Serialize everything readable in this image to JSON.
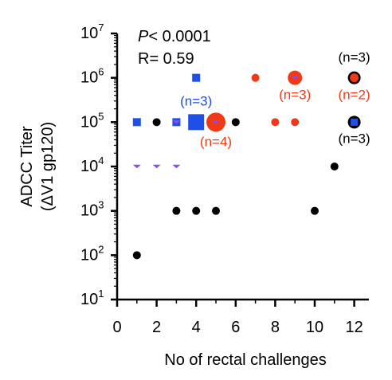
{
  "chart_data": {
    "type": "scatter",
    "title": "",
    "xlabel": "No of rectal challenges",
    "ylabel_line1": "ADCC Titer",
    "ylabel_line2": "(ΔV1 gp120)",
    "xlim": [
      0,
      13
    ],
    "ylim_log10": [
      1,
      7
    ],
    "y_scale": "log10",
    "xticks": [
      0,
      2,
      4,
      6,
      8,
      10,
      12
    ],
    "yticks": [
      {
        "base": "10",
        "exp": "1",
        "value": 10
      },
      {
        "base": "10",
        "exp": "2",
        "value": 100
      },
      {
        "base": "10",
        "exp": "3",
        "value": 1000
      },
      {
        "base": "10",
        "exp": "4",
        "value": 10000
      },
      {
        "base": "10",
        "exp": "5",
        "value": 100000
      },
      {
        "base": "10",
        "exp": "6",
        "value": 1000000
      },
      {
        "base": "10",
        "exp": "7",
        "value": 10000000
      }
    ],
    "stats": {
      "p_label": "P",
      "p_text": "< 0.0001",
      "r_text": "R= 0.59"
    },
    "colors": {
      "black": "#000000",
      "blue": "#1f4fe6",
      "red": "#f03a17",
      "purple": "#8a4dea",
      "axis": "#000000"
    },
    "series": [
      {
        "marker": "circle",
        "color": "#000000",
        "points": [
          {
            "x": 1,
            "y": 100
          },
          {
            "x": 2,
            "y": 100000
          },
          {
            "x": 3,
            "y": 1000
          },
          {
            "x": 4,
            "y": 1000
          },
          {
            "x": 5,
            "y": 1000
          },
          {
            "x": 6,
            "y": 100000
          },
          {
            "x": 10,
            "y": 1000
          },
          {
            "x": 11,
            "y": 10000
          }
        ]
      },
      {
        "marker": "square",
        "color": "#1f4fe6",
        "points": [
          {
            "x": 1,
            "y": 100000
          },
          {
            "x": 3,
            "y": 100000
          },
          {
            "x": 4,
            "y": 1000000
          }
        ]
      },
      {
        "marker": "circle",
        "color": "#f03a17",
        "points": [
          {
            "x": 7,
            "y": 1000000
          },
          {
            "x": 8,
            "y": 100000
          },
          {
            "x": 9,
            "y": 100000
          }
        ]
      },
      {
        "marker": "triangle-down",
        "color": "#8a4dea",
        "points": [
          {
            "x": 1,
            "y": 10000
          },
          {
            "x": 2,
            "y": 10000
          },
          {
            "x": 3,
            "y": 10000
          },
          {
            "x": 3,
            "y": 100000
          }
        ]
      },
      {
        "marker": "square-large",
        "color": "#1f4fe6",
        "points": [
          {
            "x": 4,
            "y": 100000,
            "n": "(n=3)"
          }
        ]
      },
      {
        "marker": "circle-large",
        "color": "#f03a17",
        "points": [
          {
            "x": 5,
            "y": 100000,
            "n": "(n=4)",
            "inner": "triangle-down"
          },
          {
            "x": 9,
            "y": 1000000,
            "n": "(n=3)",
            "inner": "triangle-down"
          }
        ]
      },
      {
        "marker": "circle-outlined",
        "color": "#f03a17",
        "points": [
          {
            "x": 12,
            "y": 1000000,
            "n_top": "(n=3)",
            "n_bottom": "(n=2)"
          }
        ]
      },
      {
        "marker": "circle-outlined",
        "color": "#1f4fe6",
        "points": [
          {
            "x": 12,
            "y": 100000,
            "n": "(n=3)"
          }
        ]
      }
    ]
  }
}
